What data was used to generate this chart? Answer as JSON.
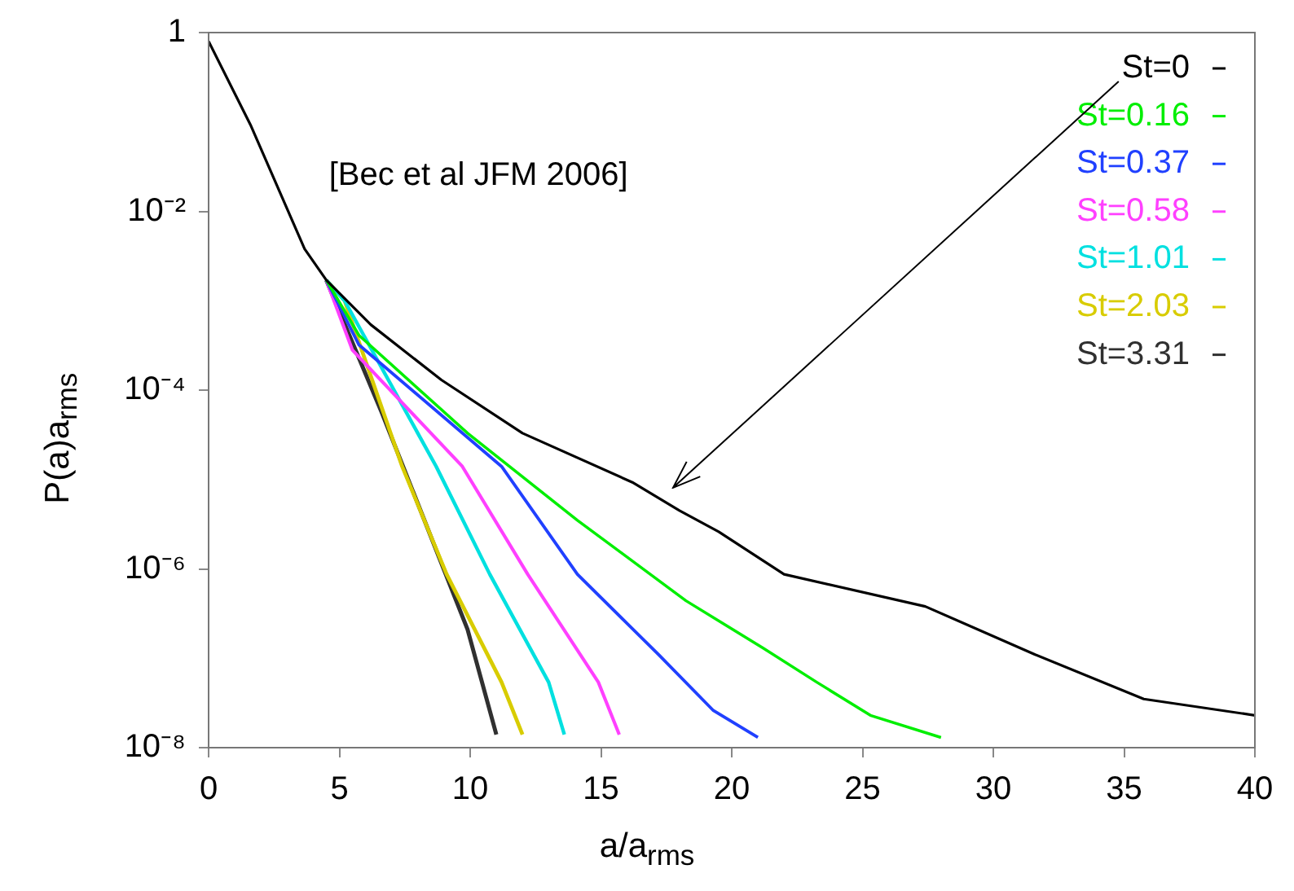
{
  "chart_data": {
    "type": "line",
    "xlabel": "a/a$_{rms}$",
    "ylabel": "P(a)a$_{rms}$",
    "log": "y",
    "legend": "top right",
    "xlim": [
      0,
      40
    ],
    "xticks": [
      0,
      5,
      10,
      15,
      20,
      25,
      30,
      35,
      40
    ],
    "ylim": [
      1e-08,
      1
    ],
    "yticks": [
      1,
      {
        "value": 0.01,
        "label": "10⁻²"
      },
      {
        "value": 0.0001,
        "label": "10⁻⁴"
      },
      {
        "value": 1e-06,
        "label": "10⁻⁶"
      },
      {
        "value": 1e-08,
        "label": "10⁻⁸"
      }
    ],
    "annotations": [
      "[Bec et al JFM 2006]"
    ],
    "series": [
      {
        "name": "St=0",
        "color": "#000000",
        "x": [
          0,
          1.6,
          3.67,
          4.5,
          6.2,
          8.9,
          12,
          16.2,
          18,
          19.5,
          22,
          27.4,
          31.6,
          35.75,
          40
        ],
        "values": [
          0.8,
          0.093,
          0.0038,
          0.0017,
          0.00054,
          0.00013,
          3.3e-05,
          9.3e-06,
          4.5e-06,
          2.6e-06,
          8.7e-07,
          3.8e-07,
          1.1e-07,
          3.5e-08,
          2.3e-08
        ]
      },
      {
        "name": "St=0.16",
        "color": "#00ee00",
        "x": [
          4.5,
          5.75,
          9.9,
          14.1,
          18.25,
          21.2,
          23.25,
          25.3,
          28
        ],
        "values": [
          0.0017,
          0.00041,
          3.3e-05,
          3.5e-06,
          4.4e-07,
          1.3e-07,
          5.4e-08,
          2.3e-08,
          1.3e-08
        ]
      },
      {
        "name": "St=0.37",
        "color": "#2040ff",
        "x": [
          4.5,
          5.75,
          11.2,
          14.1,
          17.2,
          19.3,
          21
        ],
        "values": [
          0.0017,
          0.00032,
          1.4e-05,
          8.7e-07,
          1.1e-07,
          2.6e-08,
          1.3e-08
        ]
      },
      {
        "name": "St=0.58",
        "color": "#ff40ff",
        "x": [
          4.5,
          5.5,
          9.7,
          12.2,
          14.9,
          15.7
        ],
        "values": [
          0.0017,
          0.00028,
          1.4e-05,
          8.7e-07,
          5.4e-08,
          1.4e-08
        ]
      },
      {
        "name": "St=1.01",
        "color": "#00e0e0",
        "x": [
          4.5,
          5.2,
          8.7,
          10.75,
          13,
          13.6
        ],
        "values": [
          0.0017,
          0.001,
          1.4e-05,
          8.7e-07,
          5.4e-08,
          1.4e-08
        ]
      },
      {
        "name": "St=2.03",
        "color": "#d8cc00",
        "x": [
          4.5,
          5.2,
          7.4,
          9.1,
          11.2,
          12
        ],
        "values": [
          0.0017,
          0.001,
          1.4e-05,
          8.7e-07,
          5.4e-08,
          1.4e-08
        ]
      },
      {
        "name": "St=3.31",
        "color": "#303030",
        "x": [
          4.5,
          6.6,
          8.25,
          9.9,
          11
        ],
        "values": [
          0.0017,
          5.8e-05,
          3.5e-06,
          2.1e-07,
          1.4e-08
        ]
      }
    ]
  }
}
